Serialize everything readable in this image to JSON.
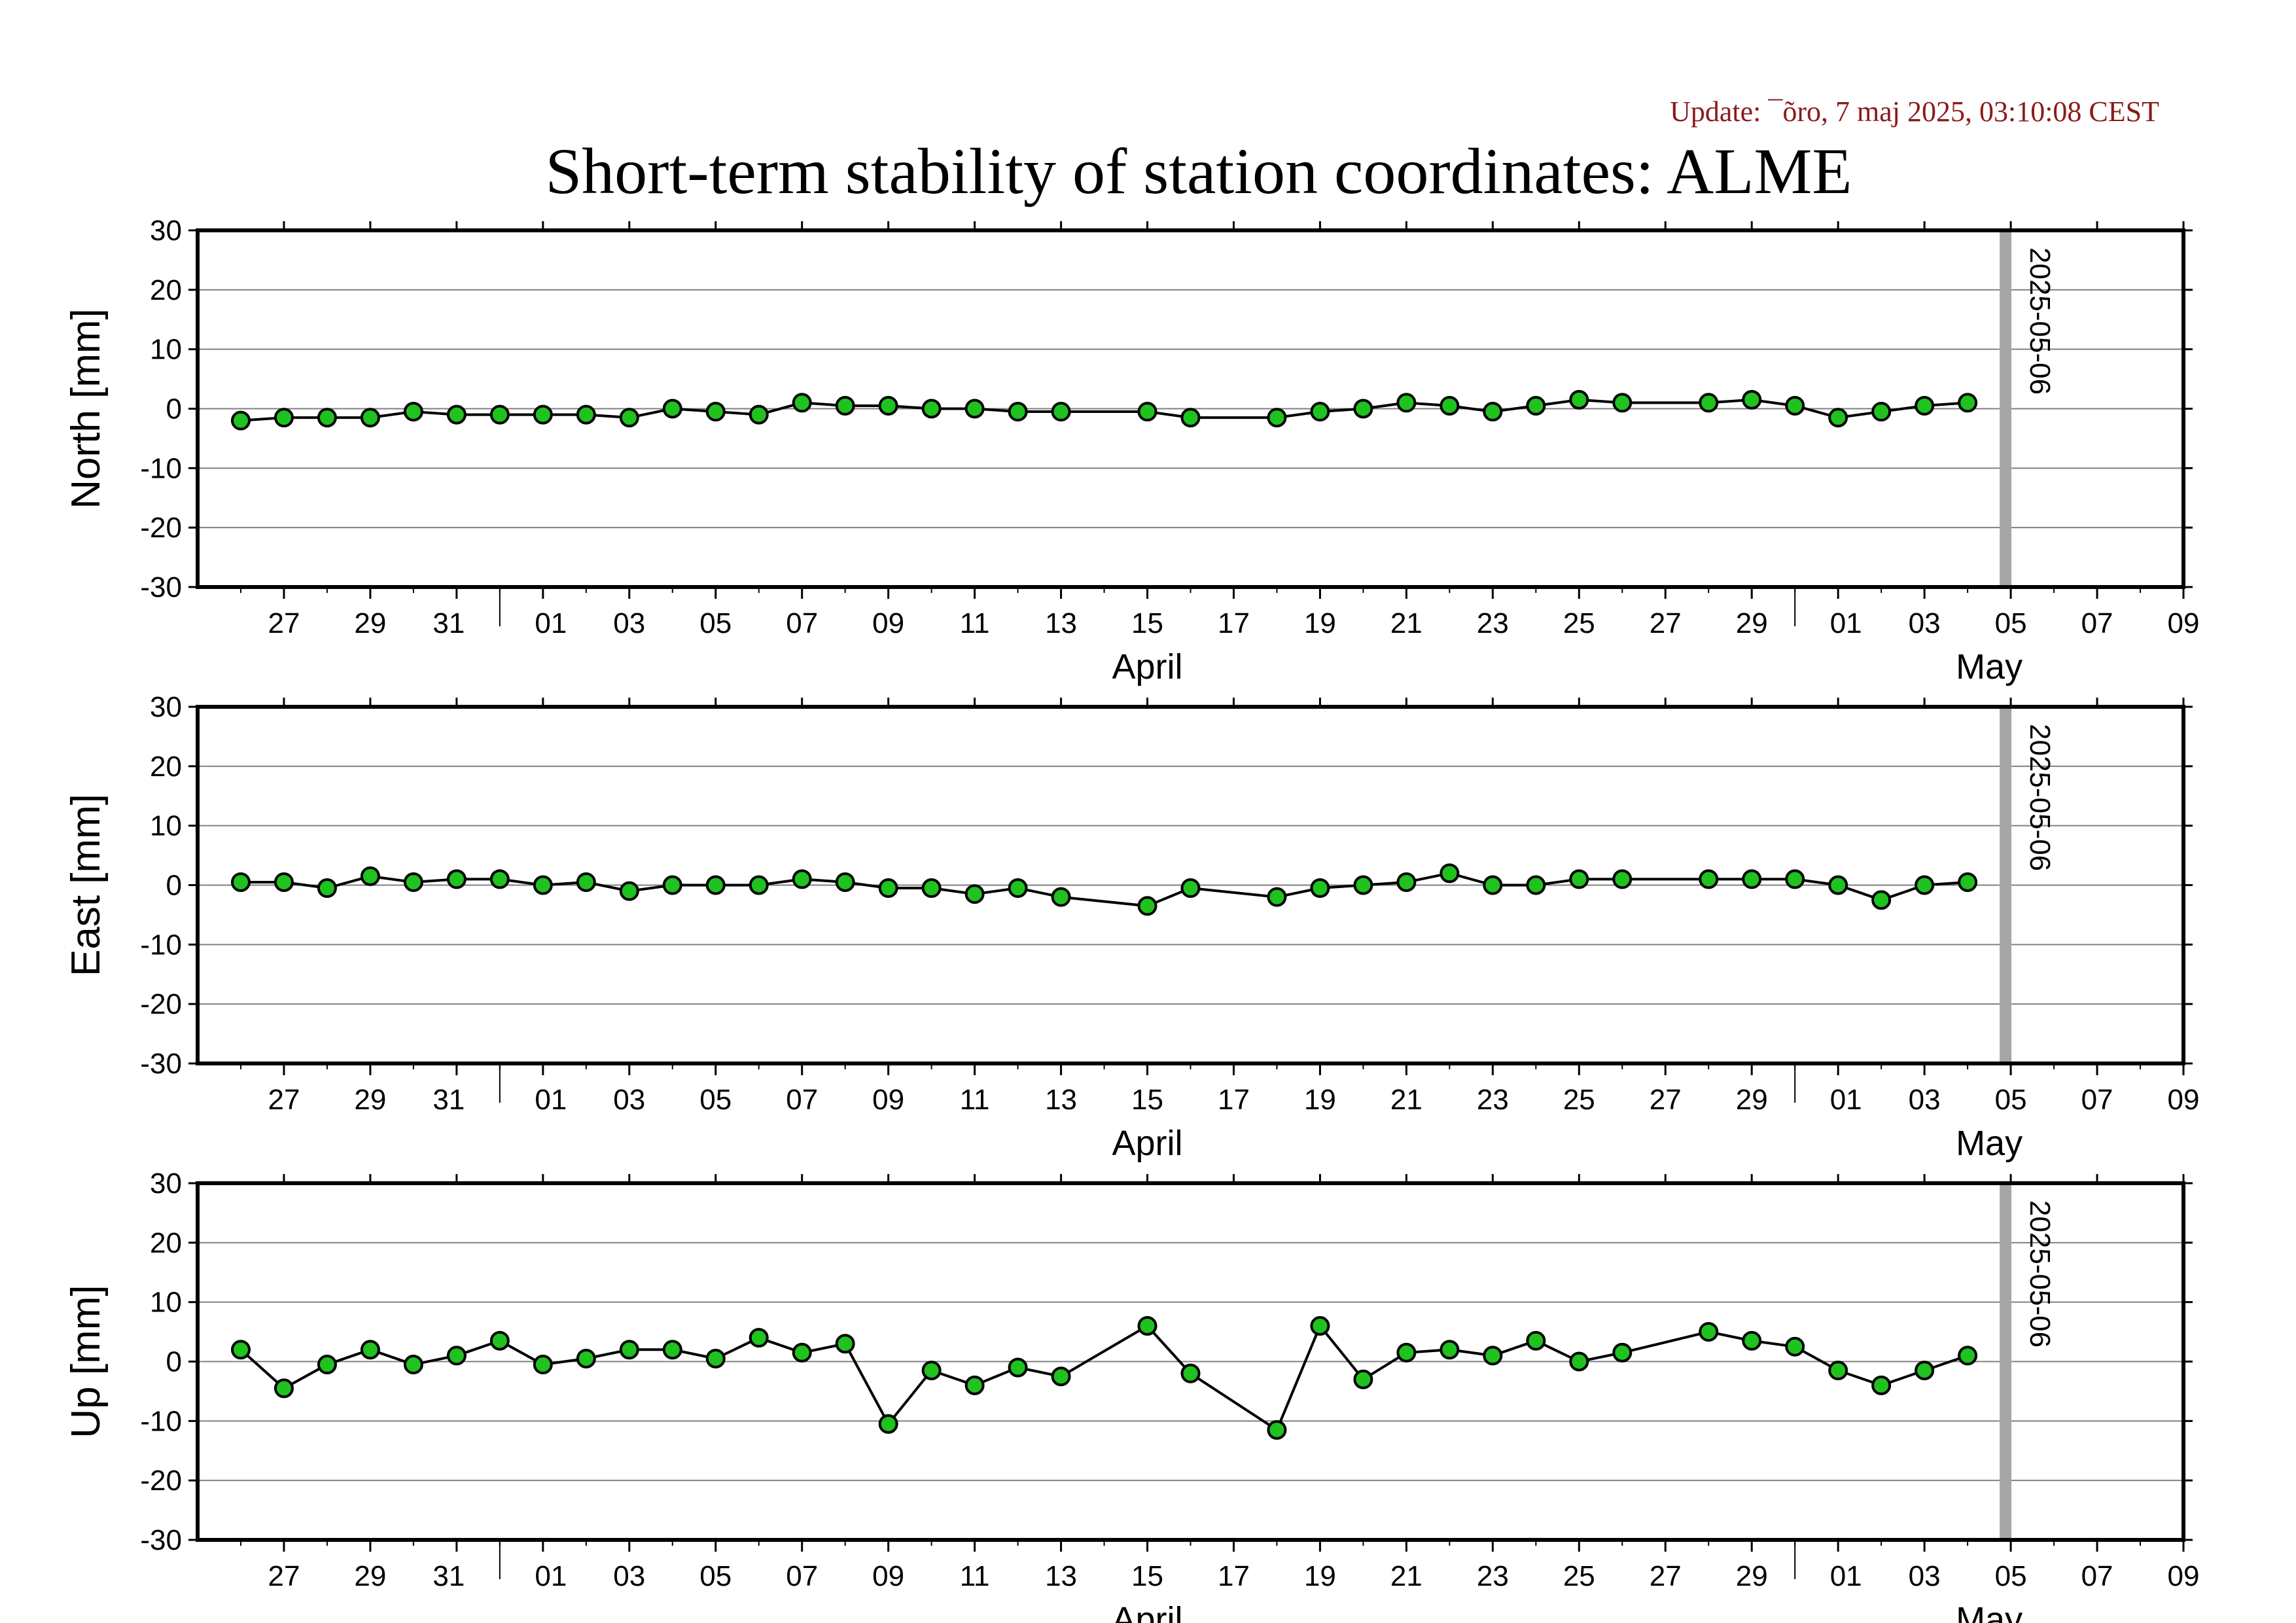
{
  "update_text": "Update: ¯õro, 7 maj 2025, 03:10:08 CEST",
  "title": "Short-term stability of station coordinates: ALME",
  "colors": {
    "update": "#8b1a1a",
    "marker_fill": "#1fc21f",
    "marker_line": "#000000",
    "grid": "#808080",
    "vline": "#a6a6a6"
  },
  "chart_data": [
    {
      "type": "line",
      "ylabel": "North [mm]",
      "ylim": [
        -30,
        30
      ],
      "yticks": [
        30,
        20,
        10,
        0,
        -10,
        -20,
        -30
      ],
      "xlim": [
        "2025-03-25",
        "2025-05-10"
      ],
      "xtick_labels": [
        "27",
        "29",
        "31",
        "01",
        "03",
        "05",
        "07",
        "09",
        "11",
        "13",
        "15",
        "17",
        "19",
        "21",
        "23",
        "25",
        "27",
        "29",
        "01",
        "03",
        "05",
        "07",
        "09"
      ],
      "month_labels": [
        "April",
        "May"
      ],
      "grid": "horizontal",
      "marker_label": "2025-05-06",
      "x": [
        "2025-03-26",
        "2025-03-27",
        "2025-03-28",
        "2025-03-29",
        "2025-03-30",
        "2025-03-31",
        "2025-04-01",
        "2025-04-02",
        "2025-04-03",
        "2025-04-04",
        "2025-04-05",
        "2025-04-06",
        "2025-04-07",
        "2025-04-08",
        "2025-04-09",
        "2025-04-10",
        "2025-04-11",
        "2025-04-12",
        "2025-04-13",
        "2025-04-14",
        "2025-04-16",
        "2025-04-17",
        "2025-04-19",
        "2025-04-20",
        "2025-04-21",
        "2025-04-22",
        "2025-04-23",
        "2025-04-24",
        "2025-04-25",
        "2025-04-26",
        "2025-04-27",
        "2025-04-29",
        "2025-04-30",
        "2025-05-01",
        "2025-05-02",
        "2025-05-03",
        "2025-05-04",
        "2025-05-05"
      ],
      "y": [
        -2.0,
        -1.5,
        -1.5,
        -1.5,
        -0.5,
        -1.0,
        -1.0,
        -1.0,
        -1.0,
        -1.5,
        0.0,
        -0.5,
        -1.0,
        1.0,
        0.5,
        0.5,
        0.0,
        0.0,
        -0.5,
        -0.5,
        -0.5,
        -1.5,
        -1.5,
        -0.5,
        0.0,
        1.0,
        0.5,
        -0.5,
        0.5,
        1.5,
        1.0,
        1.0,
        1.5,
        0.5,
        -1.5,
        -0.5,
        0.5,
        1.0
      ]
    },
    {
      "type": "line",
      "ylabel": "East [mm]",
      "ylim": [
        -30,
        30
      ],
      "yticks": [
        30,
        20,
        10,
        0,
        -10,
        -20,
        -30
      ],
      "xlim": [
        "2025-03-25",
        "2025-05-10"
      ],
      "xtick_labels": [
        "27",
        "29",
        "31",
        "01",
        "03",
        "05",
        "07",
        "09",
        "11",
        "13",
        "15",
        "17",
        "19",
        "21",
        "23",
        "25",
        "27",
        "29",
        "01",
        "03",
        "05",
        "07",
        "09"
      ],
      "month_labels": [
        "April",
        "May"
      ],
      "grid": "horizontal",
      "marker_label": "2025-05-06",
      "x": [
        "2025-03-26",
        "2025-03-27",
        "2025-03-28",
        "2025-03-29",
        "2025-03-30",
        "2025-03-31",
        "2025-04-01",
        "2025-04-02",
        "2025-04-03",
        "2025-04-04",
        "2025-04-05",
        "2025-04-06",
        "2025-04-07",
        "2025-04-08",
        "2025-04-09",
        "2025-04-10",
        "2025-04-11",
        "2025-04-12",
        "2025-04-13",
        "2025-04-14",
        "2025-04-16",
        "2025-04-17",
        "2025-04-19",
        "2025-04-20",
        "2025-04-21",
        "2025-04-22",
        "2025-04-23",
        "2025-04-24",
        "2025-04-25",
        "2025-04-26",
        "2025-04-27",
        "2025-04-29",
        "2025-04-30",
        "2025-05-01",
        "2025-05-02",
        "2025-05-03",
        "2025-05-04",
        "2025-05-05"
      ],
      "y": [
        0.5,
        0.5,
        -0.5,
        1.5,
        0.5,
        1.0,
        1.0,
        0.0,
        0.5,
        -1.0,
        0.0,
        0.0,
        0.0,
        1.0,
        0.5,
        -0.5,
        -0.5,
        -1.5,
        -0.5,
        -2.0,
        -3.5,
        -0.5,
        -2.0,
        -0.5,
        0.0,
        0.5,
        2.0,
        0.0,
        0.0,
        1.0,
        1.0,
        1.0,
        1.0,
        1.0,
        0.0,
        -2.5,
        0.0,
        0.5
      ]
    },
    {
      "type": "line",
      "ylabel": "Up [mm]",
      "ylim": [
        -30,
        30
      ],
      "yticks": [
        30,
        20,
        10,
        0,
        -10,
        -20,
        -30
      ],
      "xlim": [
        "2025-03-25",
        "2025-05-10"
      ],
      "xtick_labels": [
        "27",
        "29",
        "31",
        "01",
        "03",
        "05",
        "07",
        "09",
        "11",
        "13",
        "15",
        "17",
        "19",
        "21",
        "23",
        "25",
        "27",
        "29",
        "01",
        "03",
        "05",
        "07",
        "09"
      ],
      "month_labels": [
        "April",
        "May"
      ],
      "grid": "horizontal",
      "marker_label": "2025-05-06",
      "x": [
        "2025-03-26",
        "2025-03-27",
        "2025-03-28",
        "2025-03-29",
        "2025-03-30",
        "2025-03-31",
        "2025-04-01",
        "2025-04-02",
        "2025-04-03",
        "2025-04-04",
        "2025-04-05",
        "2025-04-06",
        "2025-04-07",
        "2025-04-08",
        "2025-04-09",
        "2025-04-10",
        "2025-04-11",
        "2025-04-12",
        "2025-04-13",
        "2025-04-14",
        "2025-04-16",
        "2025-04-17",
        "2025-04-19",
        "2025-04-20",
        "2025-04-21",
        "2025-04-22",
        "2025-04-23",
        "2025-04-24",
        "2025-04-25",
        "2025-04-26",
        "2025-04-27",
        "2025-04-29",
        "2025-04-30",
        "2025-05-01",
        "2025-05-02",
        "2025-05-03",
        "2025-05-04",
        "2025-05-05"
      ],
      "y": [
        2.0,
        -4.5,
        -0.5,
        2.0,
        -0.5,
        1.0,
        3.5,
        -0.5,
        0.5,
        2.0,
        2.0,
        0.5,
        4.0,
        1.5,
        3.0,
        -10.5,
        -1.5,
        -4.0,
        -1.0,
        -2.5,
        6.0,
        -2.0,
        -11.5,
        6.0,
        -3.0,
        1.5,
        2.0,
        1.0,
        3.5,
        0.0,
        1.5,
        5.0,
        3.5,
        2.5,
        -1.5,
        -4.0,
        -1.5,
        1.0
      ]
    }
  ]
}
